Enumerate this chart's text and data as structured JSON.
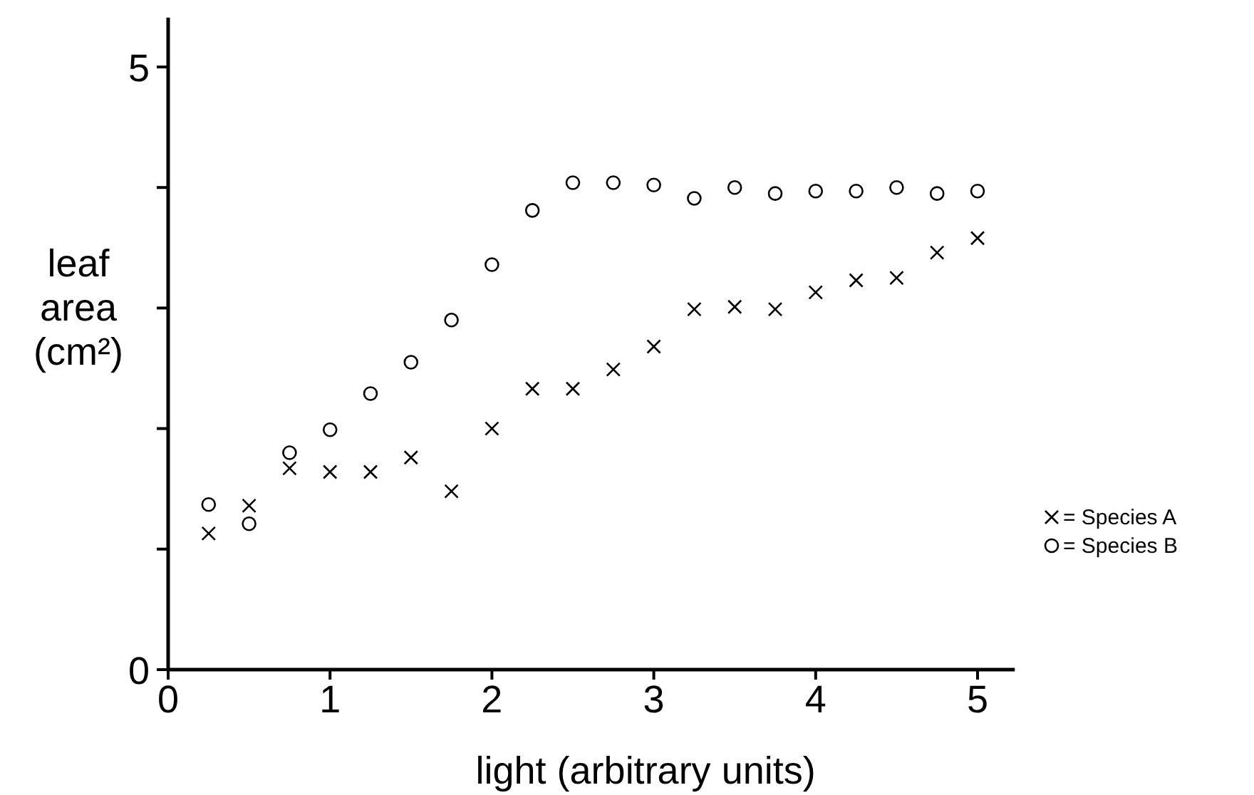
{
  "chart_data": {
    "type": "scatter",
    "xlabel": "light (arbitrary units)",
    "ylabel": "leaf area (cm²)",
    "xlim": [
      0,
      5.23
    ],
    "xticks": [
      0,
      1,
      2,
      3,
      4,
      5
    ],
    "ylim": [
      0,
      5.41
    ],
    "yticks": [
      0,
      {
        "value": 1,
        "label": null
      },
      {
        "value": 2,
        "label": null
      },
      {
        "value": 3,
        "label": null
      },
      {
        "value": 4,
        "label": null
      },
      5
    ],
    "x": [
      0.25,
      0.5,
      0.75,
      1,
      1.25,
      1.5,
      1.75,
      2,
      2.25,
      2.5,
      2.75,
      3,
      3.25,
      3.5,
      3.75,
      4,
      4.25,
      4.5,
      4.75,
      5
    ],
    "legend": "right",
    "grid": false,
    "series": [
      {
        "name": "= Species A",
        "color": "#000000",
        "marker": "cross",
        "values": [
          1.13,
          1.36,
          1.67,
          1.64,
          1.64,
          1.76,
          1.48,
          2.0,
          2.33,
          2.33,
          2.49,
          2.68,
          2.99,
          3.01,
          2.99,
          3.13,
          3.23,
          3.25,
          3.46,
          3.58
        ]
      },
      {
        "name": "= Species B",
        "color": "#000000",
        "marker": "circle",
        "values": [
          1.37,
          1.21,
          1.8,
          1.99,
          2.29,
          2.55,
          2.9,
          3.36,
          3.81,
          4.04,
          4.04,
          4.02,
          3.91,
          4.0,
          3.95,
          3.97,
          3.97,
          4.0,
          3.95,
          3.97
        ]
      }
    ]
  }
}
